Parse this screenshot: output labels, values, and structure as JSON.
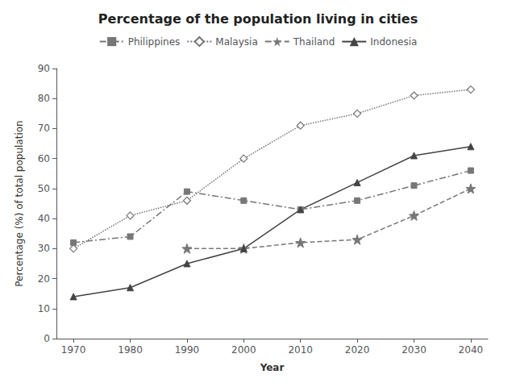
{
  "chart_data": {
    "type": "line",
    "title": "Percentage of the population living in cities",
    "x_label": "Year",
    "y_label": "Percentage (%) of total population",
    "x": [
      1970,
      1980,
      1990,
      2000,
      2010,
      2020,
      2030,
      2040
    ],
    "series": [
      {
        "name": "Philippines",
        "color": "#777777",
        "marker": "square",
        "line_style": "dashdot",
        "values": [
          32,
          34,
          49,
          46,
          43,
          46,
          51,
          56
        ]
      },
      {
        "name": "Malaysia",
        "color": "#777777",
        "marker": "hollow_diamond",
        "line_style": "dotted",
        "values": [
          30,
          41,
          46,
          60,
          71,
          75,
          81,
          83
        ]
      },
      {
        "name": "Thailand",
        "color": "#777777",
        "marker": "star",
        "line_style": "dashed",
        "values": [
          null,
          null,
          30,
          30,
          32,
          33,
          41,
          50
        ]
      },
      {
        "name": "Indonesia",
        "color": "#444444",
        "marker": "triangle",
        "line_style": "solid",
        "values": [
          14,
          17,
          25,
          30,
          43,
          52,
          61,
          64
        ]
      }
    ],
    "xlim": [
      1967,
      2043
    ],
    "xticks": [
      1970,
      1980,
      1990,
      2000,
      2010,
      2020,
      2030,
      2040
    ],
    "ylim": [
      0,
      90
    ],
    "yticks": [
      0,
      10,
      20,
      30,
      40,
      50,
      60,
      70,
      80,
      90
    ],
    "grid": false,
    "legend": "top"
  }
}
